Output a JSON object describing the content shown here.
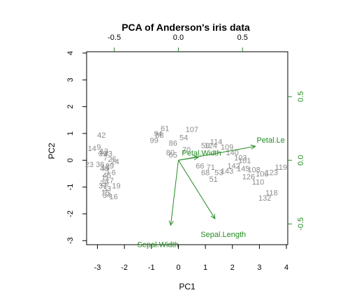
{
  "chart_data": {
    "type": "scatter",
    "title": "PCA of Anderson's iris data",
    "xlabel": "PC1",
    "ylabel": "PC2",
    "xlim": [
      -3.4,
      4.05
    ],
    "ylim": [
      -3.15,
      4.05
    ],
    "x_ticks": [
      -3,
      -2,
      -1,
      0,
      1,
      2,
      3,
      4
    ],
    "y_ticks": [
      -3,
      -2,
      -1,
      0,
      1,
      2,
      3,
      4
    ],
    "loading_scale": 4.75,
    "top_ticks": [
      -0.5,
      0.0,
      0.5
    ],
    "right_ticks": [
      -0.5,
      0.0,
      0.5
    ],
    "top_tick_labels": [
      "-0.5",
      "0.0",
      "0.5"
    ],
    "right_tick_labels": [
      "-0.5",
      "0.0",
      "0.5"
    ],
    "grid": false,
    "point_color": "#8c8c8c",
    "vector_color": "#228b22",
    "loadings": [
      {
        "name": "Sepal.Length",
        "x": 0.285,
        "y": -0.459,
        "label_x": 0.35,
        "label_y": -0.58
      },
      {
        "name": "Sepal.Width",
        "x": -0.06,
        "y": -0.51,
        "label_x": -0.16,
        "label_y": -0.66
      },
      {
        "name": "Petal.Width",
        "x": 0.155,
        "y": 0.025,
        "label_x": 0.18,
        "label_y": 0.06
      },
      {
        "name": "Petal.Le",
        "x": 0.6,
        "y": 0.11,
        "label_x": 0.72,
        "label_y": 0.16
      }
    ],
    "observations": [
      {
        "label": "107",
        "x": 0.5,
        "y": 1.15
      },
      {
        "label": "61",
        "x": -0.5,
        "y": 1.2
      },
      {
        "label": "94",
        "x": -0.75,
        "y": 1.0
      },
      {
        "label": "58",
        "x": -0.7,
        "y": 0.95
      },
      {
        "label": "99",
        "x": -0.9,
        "y": 0.75
      },
      {
        "label": "54",
        "x": 0.2,
        "y": 0.85
      },
      {
        "label": "80",
        "x": -0.3,
        "y": 0.3
      },
      {
        "label": "65",
        "x": -0.2,
        "y": 0.2
      },
      {
        "label": "86",
        "x": -0.2,
        "y": 0.65
      },
      {
        "label": "70",
        "x": 0.3,
        "y": 0.4
      },
      {
        "label": "114",
        "x": 1.4,
        "y": 0.7
      },
      {
        "label": "124",
        "x": 1.2,
        "y": 0.55
      },
      {
        "label": "109",
        "x": 1.8,
        "y": 0.5
      },
      {
        "label": "59",
        "x": 1.0,
        "y": 0.55
      },
      {
        "label": "140",
        "x": 2.0,
        "y": 0.3
      },
      {
        "label": "103",
        "x": 2.3,
        "y": 0.1
      },
      {
        "label": "119",
        "x": 3.8,
        "y": -0.25
      },
      {
        "label": "123",
        "x": 3.45,
        "y": -0.45
      },
      {
        "label": "106",
        "x": 3.1,
        "y": -0.5
      },
      {
        "label": "108",
        "x": 2.8,
        "y": -0.35
      },
      {
        "label": "110",
        "x": 2.95,
        "y": -0.8
      },
      {
        "label": "126",
        "x": 2.6,
        "y": -0.6
      },
      {
        "label": "118",
        "x": 3.45,
        "y": -1.2
      },
      {
        "label": "132",
        "x": 3.2,
        "y": -1.4
      },
      {
        "label": "101",
        "x": 2.45,
        "y": 0.0
      },
      {
        "label": "142",
        "x": 2.05,
        "y": -0.2
      },
      {
        "label": "145",
        "x": 2.4,
        "y": -0.3
      },
      {
        "label": "68",
        "x": 1.0,
        "y": -0.45
      },
      {
        "label": "66",
        "x": 0.8,
        "y": -0.2
      },
      {
        "label": "71",
        "x": 1.2,
        "y": -0.25
      },
      {
        "label": "51",
        "x": 1.3,
        "y": -0.7
      },
      {
        "label": "53",
        "x": 1.5,
        "y": -0.45
      },
      {
        "label": "143",
        "x": 1.8,
        "y": -0.4
      },
      {
        "label": "42",
        "x": -2.85,
        "y": 0.95
      },
      {
        "label": "14",
        "x": -3.2,
        "y": 0.45
      },
      {
        "label": "9",
        "x": -2.95,
        "y": 0.5
      },
      {
        "label": "4",
        "x": -2.9,
        "y": 0.3
      },
      {
        "label": "39",
        "x": -2.8,
        "y": 0.25
      },
      {
        "label": "13",
        "x": -2.75,
        "y": 0.35
      },
      {
        "label": "43",
        "x": -2.6,
        "y": 0.25
      },
      {
        "label": "7",
        "x": -2.7,
        "y": 0.1
      },
      {
        "label": "25",
        "x": -2.45,
        "y": 0.05
      },
      {
        "label": "24",
        "x": -2.35,
        "y": -0.05
      },
      {
        "label": "23",
        "x": -3.3,
        "y": -0.15
      },
      {
        "label": "18",
        "x": -2.7,
        "y": -0.25
      },
      {
        "label": "29",
        "x": -2.55,
        "y": -0.2
      },
      {
        "label": "1",
        "x": -2.6,
        "y": -0.4
      },
      {
        "label": "40",
        "x": -2.75,
        "y": -0.3
      },
      {
        "label": "36",
        "x": -2.9,
        "y": -0.15
      },
      {
        "label": "45",
        "x": -2.65,
        "y": -0.55
      },
      {
        "label": "6",
        "x": -2.4,
        "y": -0.45
      },
      {
        "label": "11",
        "x": -2.7,
        "y": -0.65
      },
      {
        "label": "17",
        "x": -2.55,
        "y": -0.75
      },
      {
        "label": "20",
        "x": -2.75,
        "y": -0.85
      },
      {
        "label": "37",
        "x": -2.8,
        "y": -0.95
      },
      {
        "label": "19",
        "x": -2.3,
        "y": -0.95
      },
      {
        "label": "33",
        "x": -2.65,
        "y": -1.05
      },
      {
        "label": "15",
        "x": -2.7,
        "y": -1.2
      },
      {
        "label": "34",
        "x": -2.65,
        "y": -1.3
      },
      {
        "label": "16",
        "x": -2.4,
        "y": -1.35
      }
    ]
  }
}
